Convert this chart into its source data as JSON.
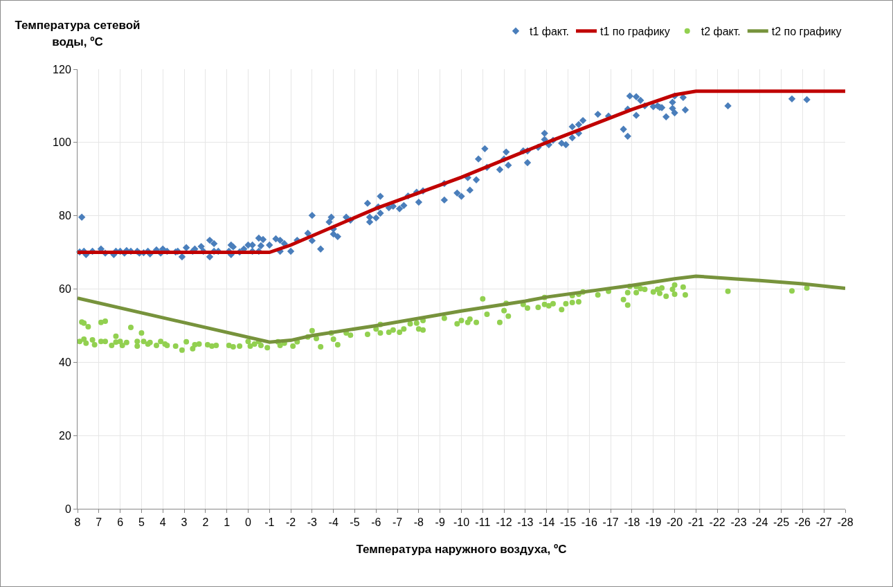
{
  "chart_data": {
    "type": "scatter",
    "ylabel": "Температура сетевой воды, ºC",
    "xlabel": "Температура наружного воздуха, ºC",
    "xlim": [
      8,
      -28
    ],
    "xticks": [
      8,
      7,
      6,
      5,
      4,
      3,
      2,
      1,
      0,
      -1,
      -2,
      -3,
      -4,
      -5,
      -6,
      -7,
      -8,
      -9,
      -10,
      -11,
      -12,
      -13,
      -14,
      -15,
      -16,
      -17,
      -18,
      -19,
      -20,
      -21,
      -22,
      -23,
      -24,
      -25,
      -26,
      -27,
      -28
    ],
    "ylim": [
      0,
      120
    ],
    "yticks": [
      0,
      20,
      40,
      60,
      80,
      100,
      120
    ],
    "grid": true,
    "legend": "top right",
    "series": [
      {
        "name": "t1 факт.",
        "marker": "diamond",
        "color": "#4a7ebb",
        "x": [
          7.8,
          7.9,
          7.7,
          7.6,
          7.3,
          6.9,
          6.7,
          6.3,
          6.2,
          6,
          5.8,
          5.7,
          5.5,
          5.2,
          5.1,
          4.9,
          4.7,
          4.6,
          4.3,
          4.1,
          4,
          3.8,
          3.4,
          3.3,
          3.1,
          2.9,
          2.6,
          2.5,
          2.2,
          2.1,
          1.8,
          1.8,
          1.6,
          1.6,
          1.4,
          0.9,
          0.8,
          0.7,
          0.8,
          0.4,
          0.2,
          0,
          -0.2,
          -0.2,
          -0.5,
          -0.7,
          -0.6,
          -0.5,
          -1,
          -1.3,
          -1.5,
          -1.5,
          -1.7,
          -2,
          -2.3,
          -2.8,
          -3,
          -3,
          -3.4,
          -3.9,
          -3.8,
          -4,
          -4,
          -4.2,
          -4.6,
          -4.8,
          -5.6,
          -5.7,
          -5.7,
          -6,
          -6.1,
          -6.2,
          -6.2,
          -6.6,
          -6.8,
          -7.1,
          -7.3,
          -7.5,
          -7.9,
          -8,
          -8.2,
          -9.2,
          -9.2,
          -9.8,
          -10,
          -10.4,
          -10.3,
          -10.7,
          -11.2,
          -11.8,
          -11.1,
          -10.8,
          -12,
          -12.1,
          -12.2,
          -12.9,
          -13.1,
          -13.1,
          -13.6,
          -13.9,
          -13.9,
          -14.1,
          -14.3,
          -14.7,
          -14.9,
          -15.2,
          -15.2,
          -15.5,
          -15.5,
          -15.7,
          -16.4,
          -16.9,
          -17.6,
          -17.8,
          -17.8,
          -18.2,
          -17.9,
          -18.2,
          -18.4,
          -18.6,
          -19,
          -19.2,
          -19.3,
          -19.4,
          -19.6,
          -19.9,
          -19.9,
          -20,
          -20,
          -20.4,
          -20.5,
          -22.5,
          -25.5,
          -26.2
        ],
        "values": [
          79.6,
          70.1,
          70.3,
          69.4,
          70.3,
          70.9,
          69.8,
          69.4,
          70.3,
          70.3,
          69.8,
          70.5,
          70.3,
          70.3,
          69.8,
          69.9,
          70.3,
          69.6,
          70.7,
          69.8,
          70.9,
          70.3,
          70.1,
          70.3,
          68.8,
          71.3,
          70.3,
          70.9,
          71.6,
          70.3,
          73.3,
          68.8,
          72.4,
          70.3,
          70.3,
          70.3,
          72,
          71.5,
          69.4,
          70.1,
          70.9,
          72,
          72,
          70.3,
          73.9,
          73.5,
          71.8,
          70.3,
          72,
          73.7,
          73.3,
          70.3,
          72.4,
          70.3,
          73.3,
          75.2,
          73.2,
          80.1,
          70.9,
          79.6,
          78.3,
          76.4,
          75,
          74.3,
          79.6,
          78.8,
          83.4,
          78.3,
          79.6,
          79.4,
          82.4,
          85.3,
          80.7,
          82.2,
          82.6,
          81.9,
          82.8,
          85.4,
          86.4,
          83.7,
          86.8,
          88.8,
          84.3,
          86.2,
          85.3,
          87,
          90.4,
          89.8,
          93.2,
          92.6,
          98.3,
          95.5,
          95.5,
          97.4,
          93.8,
          97.7,
          97.7,
          94.5,
          98.7,
          102.5,
          100.8,
          99.4,
          100.6,
          99.8,
          99.4,
          101.3,
          104.3,
          102.5,
          104.9,
          106,
          107.7,
          107.2,
          103.6,
          101.7,
          109.1,
          107.4,
          112.7,
          112.5,
          111.5,
          110,
          109.8,
          110,
          109.6,
          109.5,
          107,
          111,
          109.3,
          108.1,
          112.7,
          112.3,
          108.9,
          110,
          111.9,
          111.7
        ]
      },
      {
        "name": "t1 по графику",
        "type": "line",
        "marker": "none",
        "color": "#c00000",
        "x": [
          8,
          -1,
          -2,
          -3,
          -6,
          -10,
          -14,
          -18,
          -20,
          -21,
          -28
        ],
        "values": [
          70,
          70,
          72,
          74.5,
          82,
          90.5,
          100,
          109,
          113,
          114,
          114
        ]
      },
      {
        "name": "t2 факт.",
        "marker": "circle",
        "color": "#92d050",
        "x": [
          7.8,
          7.7,
          7.5,
          6.9,
          6.7,
          5.5,
          5,
          6.2,
          7.9,
          7.7,
          7.6,
          7.3,
          7.2,
          6.9,
          6.7,
          6.4,
          6.2,
          6,
          5.9,
          5.7,
          5.2,
          5.2,
          4.9,
          4.7,
          4.6,
          4.3,
          4.1,
          3.9,
          3.8,
          3.4,
          3.1,
          2.9,
          2.6,
          2.5,
          2.3,
          1.9,
          1.7,
          1.5,
          0.9,
          0.7,
          0.4,
          0,
          -0.1,
          -0.3,
          -0.5,
          -0.6,
          -0.9,
          -1.4,
          -1.5,
          -1.7,
          -2.1,
          -2.3,
          -2.8,
          -3,
          -3.2,
          -3.4,
          -3.9,
          -4,
          -4.2,
          -4.6,
          -4.8,
          -5.6,
          -6,
          -6.2,
          -6.2,
          -6.6,
          -6.8,
          -7.1,
          -7.3,
          -7.6,
          -7.9,
          -8,
          -8.2,
          -8.2,
          -9.2,
          -9.8,
          -10,
          -10.3,
          -10.4,
          -10.7,
          -11,
          -11.2,
          -11.8,
          -12,
          -12.1,
          -12.2,
          -12.9,
          -13.1,
          -13.6,
          -13.9,
          -13.9,
          -14.1,
          -14.3,
          -14.7,
          -14.9,
          -15.2,
          -15.2,
          -15.5,
          -15.5,
          -15.7,
          -16.4,
          -16.9,
          -17.6,
          -17.8,
          -17.8,
          -17.9,
          -18.2,
          -18.4,
          -18.6,
          -18.2,
          -19,
          -19.2,
          -19.4,
          -19.3,
          -19.6,
          -19.9,
          -20,
          -20,
          -20.4,
          -20.5,
          -22.5,
          -25.5,
          -26.2
        ],
        "values": [
          51,
          50.7,
          49.7,
          50.9,
          51.2,
          49.5,
          48,
          47.1,
          45.7,
          46.3,
          45.2,
          46.1,
          44.8,
          45.7,
          45.7,
          44.6,
          45.5,
          45.7,
          44.6,
          45.4,
          45.7,
          44.4,
          45.7,
          45,
          45.4,
          44.6,
          45.7,
          45,
          44.6,
          44.4,
          43.3,
          45.6,
          43.7,
          44.8,
          45,
          44.8,
          44.4,
          44.6,
          44.6,
          44.2,
          44.4,
          45.7,
          44.4,
          45,
          45.7,
          44.6,
          44,
          45.6,
          44.6,
          45.2,
          44.4,
          45.6,
          46.9,
          48.6,
          46.5,
          44.2,
          48,
          46.3,
          44.8,
          48,
          47.4,
          47.6,
          49.1,
          50.3,
          48,
          48.2,
          48.8,
          48.2,
          49.1,
          50.5,
          50.7,
          49.1,
          48.8,
          51.4,
          52,
          50.5,
          51.4,
          50.9,
          51.8,
          50.9,
          57.3,
          53.1,
          50.9,
          54.1,
          56.1,
          52.6,
          55.8,
          54.8,
          55,
          57.7,
          55.8,
          55.4,
          56,
          54.4,
          56,
          58.2,
          56.3,
          56.5,
          58.6,
          59.2,
          58.4,
          59.4,
          57.1,
          55.6,
          59,
          60.7,
          60.7,
          60.1,
          59.9,
          59,
          59.2,
          59.9,
          60.3,
          58.8,
          58,
          59.9,
          61.1,
          58.6,
          60.5,
          58.4,
          59.4,
          59.5,
          60.3
        ]
      },
      {
        "name": "t2 по графику",
        "type": "line",
        "marker": "none",
        "color": "#77933c",
        "x": [
          8,
          -1,
          -2,
          -3,
          -6,
          -10,
          -13,
          -14,
          -18,
          -20,
          -21,
          -23,
          -24,
          -26,
          -28
        ],
        "values": [
          57.5,
          45.5,
          46,
          47.3,
          50,
          54,
          56.7,
          57.8,
          61,
          62.8,
          63.5,
          62.7,
          62.3,
          61.4,
          60.2
        ]
      }
    ]
  }
}
